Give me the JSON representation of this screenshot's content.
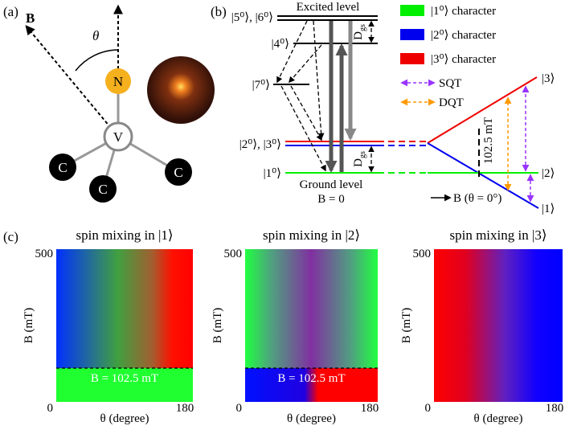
{
  "panel_a": {
    "label": "(a)",
    "b_vector": "B",
    "angle": "θ",
    "nitrogen": "N",
    "vacancy": "V",
    "carbons": [
      "C",
      "C",
      "C"
    ]
  },
  "panel_b": {
    "label": "(b)",
    "excited_level": "Excited level",
    "ground_level": "Ground level",
    "zero_field": "B = 0",
    "levels": {
      "l56": "|5⁰⟩, |6⁰⟩",
      "l4": "|4⁰⟩",
      "l7": "|7⁰⟩",
      "l23": "|2⁰⟩, |3⁰⟩",
      "l1": "|1⁰⟩"
    },
    "splitting_excited": {
      "symbol": "D",
      "subscript": "gs"
    },
    "splitting_ground": {
      "symbol": "D",
      "subscript": "gs"
    },
    "crossing_field": "102.5 mT",
    "states": [
      "|3⟩",
      "|2⟩",
      "|1⟩"
    ],
    "field_axis": "B (θ = 0°)",
    "legend": [
      {
        "color": "#00ee00",
        "label": "|1⁰⟩ character"
      },
      {
        "color": "#0000ee",
        "label": "|2⁰⟩ character"
      },
      {
        "color": "#ee0000",
        "label": "|3⁰⟩ character"
      }
    ],
    "transitions": [
      {
        "label": "SQT",
        "color": "#9933ff"
      },
      {
        "label": "DQT",
        "color": "#ff9900"
      }
    ]
  },
  "panel_c": {
    "label": "(c)",
    "plots": [
      {
        "title": "spin mixing in |1⟩",
        "y_label": "B (mT)",
        "y_max": "500",
        "origin": "0",
        "x_max": "180",
        "x_label": "θ (degree)",
        "annotation": "B = 102.5 mT"
      },
      {
        "title": "spin mixing in |2⟩",
        "y_label": "B (mT)",
        "y_max": "500",
        "origin": "0",
        "x_max": "180",
        "x_label": "θ (degree)",
        "annotation": "B = 102.5 mT"
      },
      {
        "title": "spin mixing in |3⟩",
        "y_label": "B (mT)",
        "y_max": "500",
        "origin": "0",
        "x_max": "180",
        "x_label": "θ (degree)"
      }
    ]
  }
}
